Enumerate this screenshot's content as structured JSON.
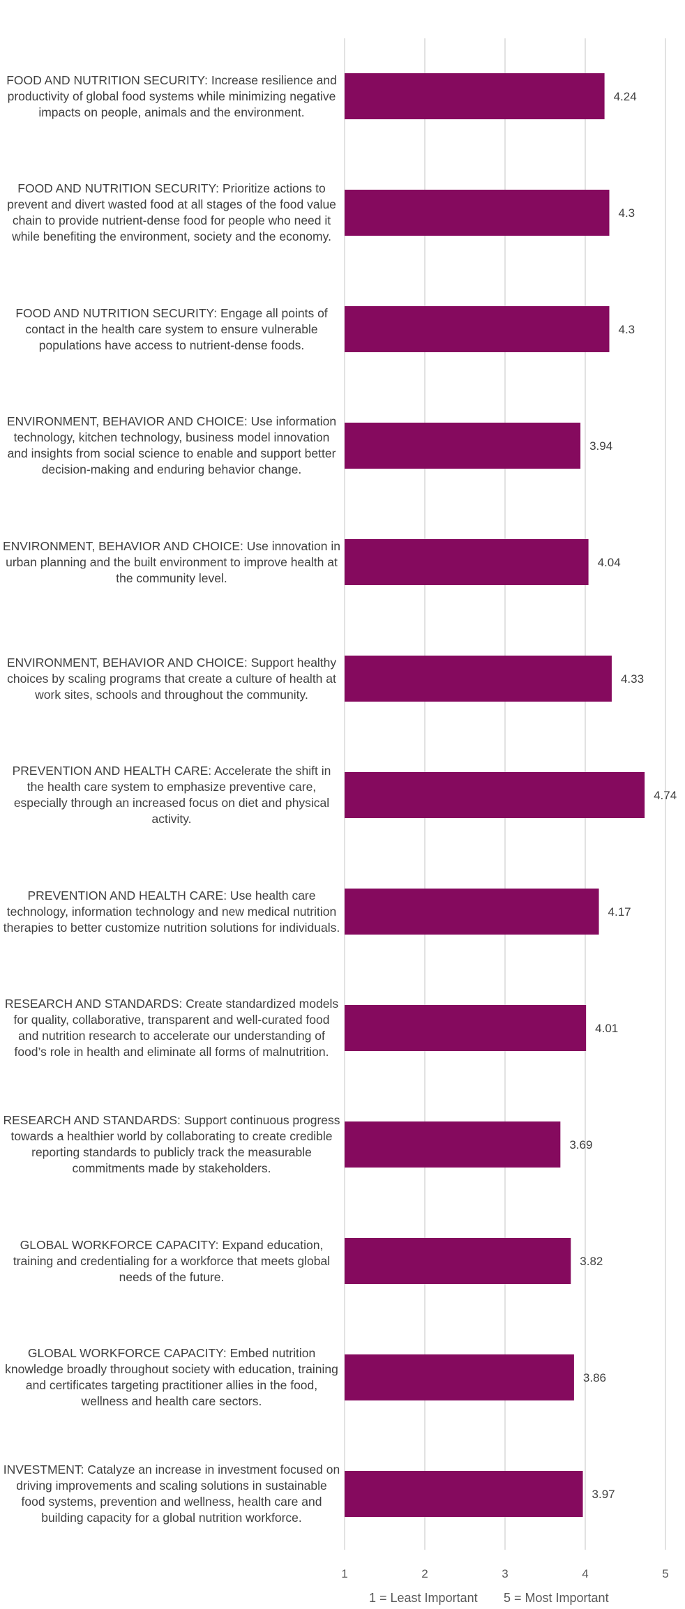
{
  "chart_data": {
    "type": "bar",
    "orientation": "horizontal",
    "categories": [
      "FOOD AND NUTRITION SECURITY: Increase resilience and productivity of global food systems while minimizing negative impacts on people, animals and the environment.",
      "FOOD AND NUTRITION SECURITY: Prioritize actions to prevent and divert wasted food at all stages of the food value chain to provide nutrient-dense food for people who need it while benefiting the environment, society and the economy.",
      "FOOD AND NUTRITION SECURITY: Engage all points of contact in the health care system to ensure vulnerable populations have access to nutrient-dense foods.",
      "ENVIRONMENT, BEHAVIOR AND CHOICE: Use information technology, kitchen technology, business model innovation and insights from social science to enable and support better decision-making and enduring behavior change.",
      "ENVIRONMENT, BEHAVIOR AND CHOICE: Use innovation in urban planning and the built environment to improve health at the community level.",
      "ENVIRONMENT, BEHAVIOR AND CHOICE: Support healthy choices by scaling programs that create a culture of health at work sites, schools and throughout the community.",
      "PREVENTION AND HEALTH CARE: Accelerate the shift in the health care system to emphasize preventive care, especially through an increased focus on diet and physical activity.",
      "PREVENTION AND HEALTH CARE: Use health care technology, information technology and new medical nutrition therapies to better customize nutrition solutions for individuals.",
      "RESEARCH AND STANDARDS: Create standardized models for quality, collaborative, transparent and well-curated food and nutrition research to accelerate our understanding of food’s role in health and eliminate all forms of malnutrition.",
      "RESEARCH AND STANDARDS: Support continuous progress towards a healthier world by collaborating to create credible reporting standards to publicly track the measurable commitments made by stakeholders.",
      "GLOBAL WORKFORCE CAPACITY: Expand education, training and credentialing for a workforce that meets global needs of the future.",
      "GLOBAL WORKFORCE CAPACITY: Embed nutrition knowledge broadly throughout society with education, training and certificates targeting practitioner allies in the food, wellness and health care sectors.",
      "INVESTMENT: Catalyze an increase in investment focused on driving improvements and scaling solutions in sustainable food systems, prevention and wellness, health care and building capacity for a global nutrition workforce."
    ],
    "values": [
      4.24,
      4.3,
      4.3,
      3.94,
      4.04,
      4.33,
      4.74,
      4.17,
      4.01,
      3.69,
      3.82,
      3.86,
      3.97
    ],
    "value_labels": [
      "4.24",
      "4.3",
      "4.3",
      "3.94",
      "4.04",
      "4.33",
      "4.74",
      "4.17",
      "4.01",
      "3.69",
      "3.82",
      "3.86",
      "3.97"
    ],
    "x_ticks": [
      "1",
      "2",
      "3",
      "4",
      "5"
    ],
    "xlim": [
      1,
      5
    ],
    "grid": "vertical",
    "bar_color": "#850A5E",
    "grid_color": "#D9D9D9",
    "footer_left": "1 = Least Important",
    "footer_right": "5 = Most Important"
  }
}
